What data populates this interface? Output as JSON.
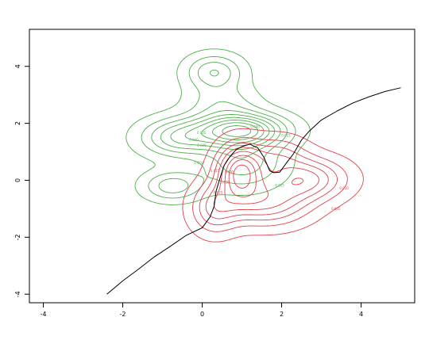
{
  "chart_data": {
    "type": "line",
    "title": "",
    "xlabel": "",
    "ylabel": "",
    "xlim": [
      -4.35,
      5.35
    ],
    "ylim": [
      -4.3,
      5.3
    ],
    "x_ticks": [
      -4,
      -2,
      0,
      2,
      4
    ],
    "y_ticks": [
      -4,
      -2,
      0,
      2,
      4
    ],
    "x_tick_labels": [
      "-4",
      "-2",
      "0",
      "2",
      "4"
    ],
    "y_tick_labels": [
      "-4",
      "-2",
      "0",
      "2",
      "4"
    ],
    "grid": false,
    "colors": {
      "curve": "#000000",
      "green_contours": "#4daf4a",
      "red_contours": "#e0424b"
    },
    "curve": {
      "x": [
        -2.4,
        -2.0,
        -1.6,
        -1.2,
        -0.8,
        -0.4,
        0.0,
        0.2,
        0.3,
        0.35,
        0.45,
        0.55,
        0.7,
        0.85,
        1.0,
        1.2,
        1.4,
        1.55,
        1.7,
        1.8,
        1.95,
        2.1,
        2.3,
        2.5,
        2.7,
        3.0,
        3.4,
        3.8,
        4.2,
        4.6,
        5.0
      ],
      "y": [
        -4.0,
        -3.55,
        -3.1,
        -2.7,
        -2.3,
        -1.95,
        -1.65,
        -1.3,
        -0.9,
        -0.4,
        0.1,
        0.5,
        0.85,
        1.05,
        1.2,
        1.25,
        1.15,
        0.8,
        0.35,
        0.25,
        0.3,
        0.55,
        0.95,
        1.4,
        1.75,
        2.1,
        2.45,
        2.7,
        2.95,
        3.1,
        3.25
      ]
    },
    "density_contours": [
      {
        "color": "green",
        "levels": [
          "0.005",
          "0.010",
          "0.015",
          "0.020",
          "0.025",
          "0.030",
          "0.035",
          "0.040",
          "0.045"
        ],
        "label_levels": [
          "0.005",
          "0.010",
          "0.015",
          "0.025",
          "0.030",
          "0.035",
          "0.040"
        ],
        "components": [
          {
            "center": [
              0.95,
              1.75
            ],
            "sd": [
              0.75,
              0.4
            ],
            "weight": 1.0
          },
          {
            "center": [
              -0.6,
              1.5
            ],
            "sd": [
              0.65,
              0.45
            ],
            "weight": 0.5
          },
          {
            "center": [
              0.3,
              3.8
            ],
            "sd": [
              0.48,
              0.42
            ],
            "weight": 0.42
          },
          {
            "center": [
              -0.75,
              -0.2
            ],
            "sd": [
              0.5,
              0.35
            ],
            "weight": 0.38
          },
          {
            "center": [
              1.0,
              0.6
            ],
            "sd": [
              0.7,
              0.6
            ],
            "weight": 0.38
          },
          {
            "center": [
              0.5,
              2.7
            ],
            "sd": [
              0.6,
              0.45
            ],
            "weight": 0.25
          }
        ]
      },
      {
        "color": "red",
        "levels": [
          "0.005",
          "0.010",
          "0.015",
          "0.020",
          "0.025",
          "0.030",
          "0.035",
          "0.040"
        ],
        "label_levels": [
          "0.005",
          "0.010",
          "0.015",
          "0.025",
          "0.030",
          "0.035"
        ],
        "components": [
          {
            "center": [
              0.95,
              0.3
            ],
            "sd": [
              0.4,
              0.65
            ],
            "weight": 1.0
          },
          {
            "center": [
              2.6,
              0.05
            ],
            "sd": [
              0.7,
              0.5
            ],
            "weight": 0.65
          },
          {
            "center": [
              1.6,
              -0.8
            ],
            "sd": [
              0.75,
              0.55
            ],
            "weight": 0.6
          },
          {
            "center": [
              0.3,
              -1.0
            ],
            "sd": [
              0.4,
              0.6
            ],
            "weight": 0.45
          },
          {
            "center": [
              1.9,
              0.9
            ],
            "sd": [
              0.5,
              0.45
            ],
            "weight": 0.35
          }
        ]
      }
    ]
  }
}
